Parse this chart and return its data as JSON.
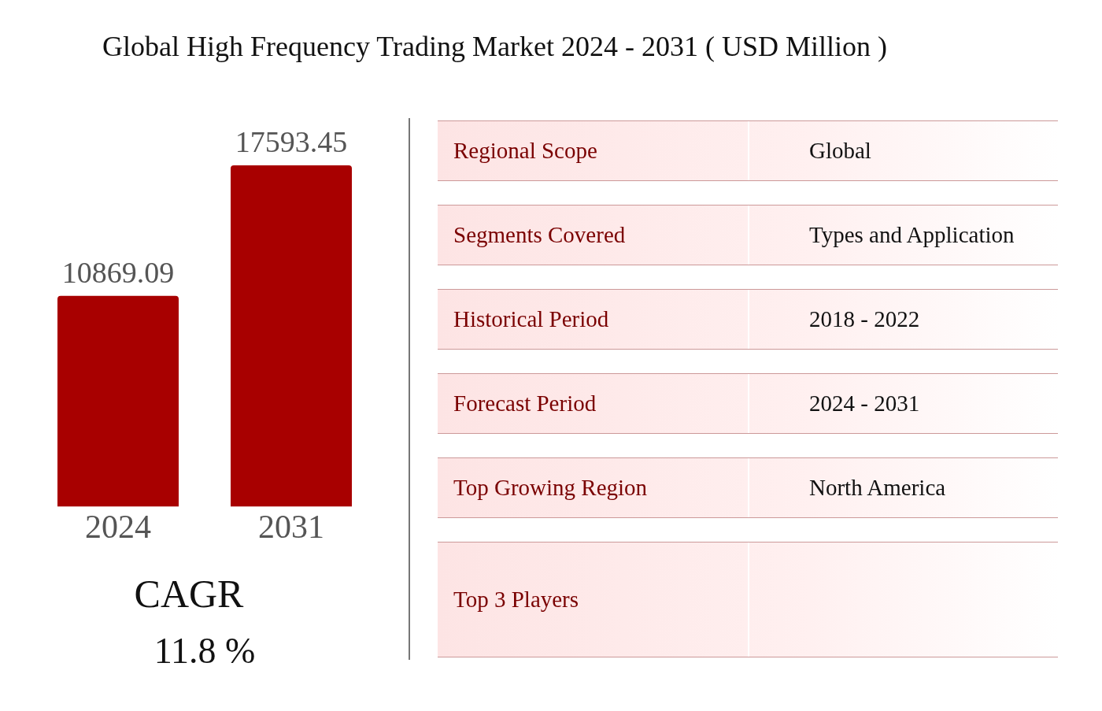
{
  "chart_data": [
    {
      "type": "bar",
      "title": "Global High Frequency Trading Market 2024 - 2031 ( USD Million )",
      "categories": [
        "2024",
        "2031"
      ],
      "values": [
        10869.09,
        17593.45
      ],
      "color": "#a80000",
      "data_labels": true,
      "annotations": [
        "CAGR",
        "11.8 %"
      ]
    },
    {
      "type": "other",
      "y_categories": [
        "Regional Scope",
        "Segments Covered",
        "Historical Period",
        "Forecast Period",
        "Top Growing Region",
        "Top 3 Players"
      ],
      "cell_labels": [
        [
          "Global"
        ],
        [
          "Types and Application"
        ],
        [
          "2018 - 2022"
        ],
        [
          "2024 - 2031"
        ],
        [
          "North America"
        ],
        [
          null
        ]
      ]
    }
  ]
}
